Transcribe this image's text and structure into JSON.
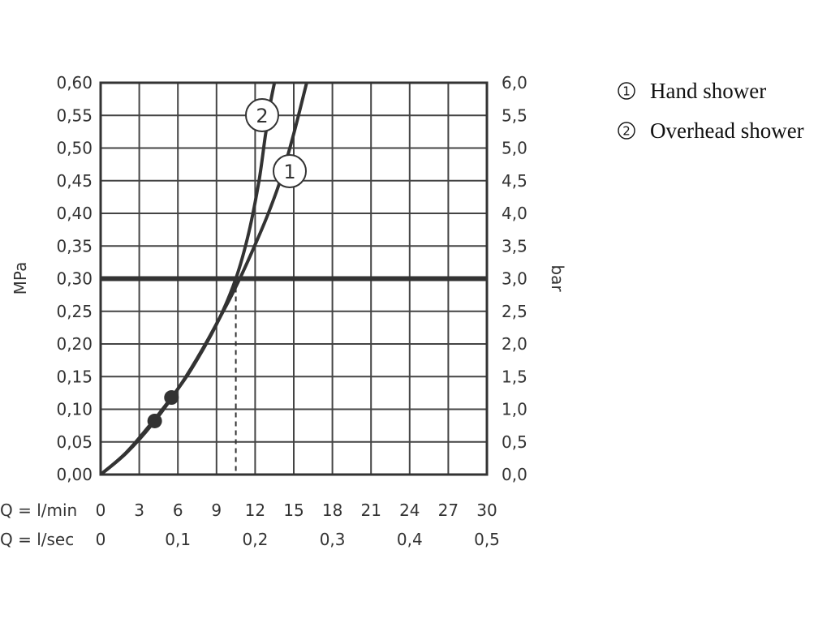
{
  "chart_data": {
    "type": "line",
    "y_left": {
      "label": "MPa",
      "range": [
        0,
        0.6
      ],
      "ticks": [
        "0,00",
        "0,05",
        "0,10",
        "0,15",
        "0,20",
        "0,25",
        "0,30",
        "0,35",
        "0,40",
        "0,45",
        "0,50",
        "0,55",
        "0,60"
      ]
    },
    "y_right": {
      "label": "bar",
      "range": [
        0,
        6
      ],
      "ticks": [
        "0,0",
        "0,5",
        "1,0",
        "1,5",
        "2,0",
        "2,5",
        "3,0",
        "3,5",
        "4,0",
        "4,5",
        "5,0",
        "5,5",
        "6,0"
      ]
    },
    "x_lmin": {
      "label": "Q = l/min",
      "range": [
        0,
        30
      ],
      "ticks": [
        "0",
        "3",
        "6",
        "9",
        "12",
        "15",
        "18",
        "21",
        "24",
        "27",
        "30"
      ]
    },
    "x_lsec": {
      "label": "Q = l/sec",
      "ticks": [
        {
          "value": 0,
          "text": "0"
        },
        {
          "value": 0.1,
          "text": "0,1"
        },
        {
          "value": 0.2,
          "text": "0,2"
        },
        {
          "value": 0.3,
          "text": "0,3"
        },
        {
          "value": 0.4,
          "text": "0,4"
        },
        {
          "value": 0.5,
          "text": "0,5"
        }
      ]
    },
    "grid": true,
    "reference_line": {
      "y": 0.3
    },
    "operating_point": {
      "x": 10.5,
      "y": 0.3
    },
    "series": [
      {
        "name": "Hand shower",
        "marker": "1",
        "x": [
          0,
          2,
          4,
          6,
          8,
          10,
          11,
          12,
          13,
          14,
          15,
          16
        ],
        "y": [
          0.0,
          0.033,
          0.077,
          0.131,
          0.195,
          0.268,
          0.308,
          0.352,
          0.399,
          0.453,
          0.522,
          0.6
        ],
        "points": [
          {
            "x": 4.2,
            "y": 0.082
          }
        ]
      },
      {
        "name": "Overhead shower",
        "marker": "2",
        "x": [
          0,
          2,
          4,
          5.5,
          7,
          9,
          10.5,
          11.5,
          12.3,
          12.8,
          13.2,
          13.5
        ],
        "y": [
          0.0,
          0.034,
          0.08,
          0.118,
          0.16,
          0.23,
          0.3,
          0.37,
          0.45,
          0.52,
          0.57,
          0.6
        ],
        "points": [
          {
            "x": 5.5,
            "y": 0.118
          }
        ]
      }
    ]
  },
  "legend": [
    {
      "symbol": "1",
      "label": "Hand shower"
    },
    {
      "symbol": "2",
      "label": "Overhead shower"
    }
  ]
}
